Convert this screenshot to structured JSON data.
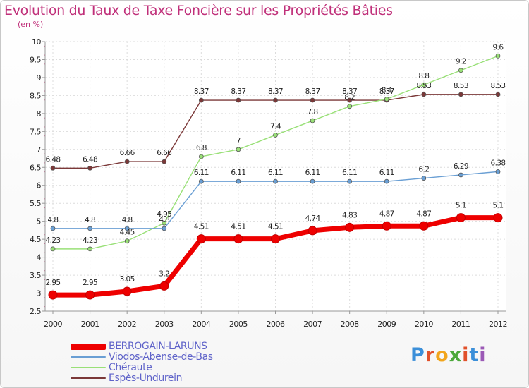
{
  "header": {
    "title": "Evolution du Taux de Taxe Foncière sur les Propriétés Bâties",
    "unit": "(en %)"
  },
  "logo": {
    "text": "Proxiti",
    "letters": [
      "P",
      "r",
      "o",
      "x",
      "i",
      "t",
      "i"
    ],
    "letter_colors": [
      "#3b8fd9",
      "#e1502a",
      "#f2a51c",
      "#4ca83b",
      "#e1502a",
      "#3b8fd9",
      "#9b59b6"
    ]
  },
  "chart_data": {
    "type": "line",
    "title": "Evolution du Taux de Taxe Foncière sur les Propriétés Bâties",
    "ylabel": "(en %)",
    "xlabel": "",
    "x": [
      "2000",
      "2001",
      "2002",
      "2003",
      "2004",
      "2005",
      "2006",
      "2007",
      "2008",
      "2009",
      "2010",
      "2011",
      "2012"
    ],
    "ylim": [
      2.5,
      10
    ],
    "y_ticks": [
      "2.5",
      "3",
      "3.5",
      "4",
      "4.5",
      "5",
      "5.5",
      "6",
      "6.5",
      "7",
      "7.5",
      "8",
      "8.5",
      "9",
      "9.5",
      "10"
    ],
    "grid": true,
    "series": [
      {
        "name": "BERROGAIN-LARUNS",
        "color": "#ee0000",
        "highlight": true,
        "values": [
          2.95,
          2.95,
          3.05,
          3.2,
          4.51,
          4.51,
          4.51,
          4.74,
          4.83,
          4.87,
          4.87,
          5.1,
          5.1
        ],
        "labels": [
          "2.95",
          "2.95",
          "3.05",
          "3.2",
          "4.51",
          "4.51",
          "4.51",
          "4.74",
          "4.83",
          "4.87",
          "4.87",
          "5.1",
          "5.1"
        ]
      },
      {
        "name": "Viodos-Abense-de-Bas",
        "color": "#6a9fd4",
        "highlight": false,
        "values": [
          4.8,
          4.8,
          4.8,
          4.8,
          6.11,
          6.11,
          6.11,
          6.11,
          6.11,
          6.11,
          6.2,
          6.29,
          6.38
        ],
        "labels": [
          "4.8",
          "4.8",
          "4.8",
          "4.8",
          "6.11",
          "6.11",
          "6.11",
          "6.11",
          "6.11",
          "6.11",
          "6.2",
          "6.29",
          "6.38"
        ]
      },
      {
        "name": "Chéraute",
        "color": "#99e077",
        "highlight": false,
        "values": [
          4.23,
          4.23,
          4.45,
          4.95,
          6.8,
          7,
          7.4,
          7.8,
          8.2,
          8.4,
          8.8,
          9.2,
          9.6
        ],
        "labels": [
          "4.23",
          "4.23",
          "4.45",
          "4.95",
          "6.8",
          "7",
          "7.4",
          "7.8",
          "8.2",
          "8.4",
          "8.8",
          "9.2",
          "9.6"
        ]
      },
      {
        "name": "Espès-Undurein",
        "color": "#7b3838",
        "highlight": false,
        "values": [
          6.48,
          6.48,
          6.66,
          6.66,
          8.37,
          8.37,
          8.37,
          8.37,
          8.37,
          8.37,
          8.53,
          8.53,
          8.53
        ],
        "labels": [
          "6.48",
          "6.48",
          "6.66",
          "6.66",
          "8.37",
          "8.37",
          "8.37",
          "8.37",
          "8.37",
          "8.37",
          "8.53",
          "8.53",
          "8.53"
        ]
      }
    ],
    "legend": [
      "BERROGAIN-LARUNS",
      "Viodos-Abense-de-Bas",
      "Chéraute",
      "Espès-Undurein"
    ],
    "legend_position": "bottom-left"
  }
}
